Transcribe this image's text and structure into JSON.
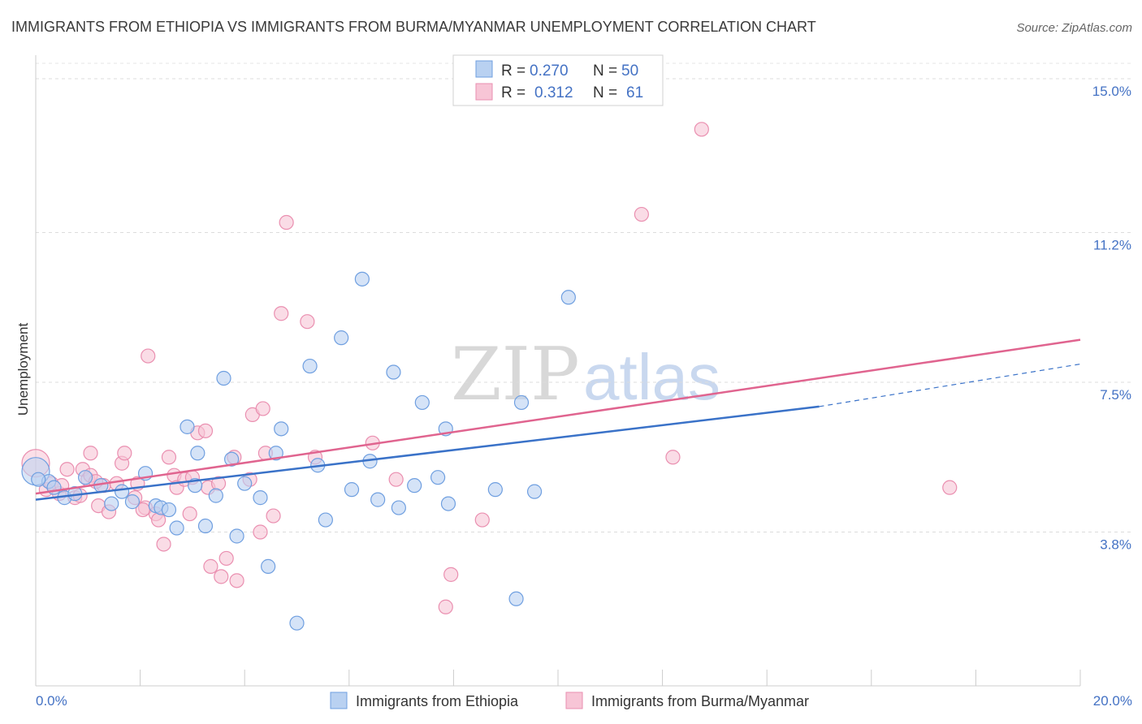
{
  "chart_data": {
    "type": "scatter",
    "title": "IMMIGRANTS FROM ETHIOPIA VS IMMIGRANTS FROM BURMA/MYANMAR UNEMPLOYMENT CORRELATION CHART",
    "source": "Source: ZipAtlas.com",
    "xlabel": "",
    "ylabel": "Unemployment",
    "xlim": [
      0,
      20
    ],
    "ylim": [
      0,
      15.0
    ],
    "x_tick_labels": [
      "0.0%",
      "20.0%"
    ],
    "y_ticks": [
      3.8,
      7.5,
      11.2,
      15.0
    ],
    "y_tick_labels": [
      "3.8%",
      "7.5%",
      "11.2%",
      "15.0%"
    ],
    "watermark": {
      "zip": "ZIP",
      "atlas": "atlas"
    },
    "legend": {
      "r_label": "R =",
      "n_label": "N =",
      "entries": [
        {
          "r": "0.270",
          "n": "50"
        },
        {
          "r": "0.312",
          "n": "61"
        }
      ]
    },
    "series": [
      {
        "name": "Immigrants from Ethiopia",
        "color": "#6f9fe0",
        "fill": "#b9d1f1",
        "line_color": "#3a72c8",
        "trend": {
          "x0": 0,
          "y0": 4.6,
          "x1": 15.0,
          "y1": 6.9,
          "dash_x1": 20,
          "dash_y1": 7.95
        },
        "points": [
          [
            0.0,
            5.3
          ],
          [
            0.25,
            5.05
          ],
          [
            0.35,
            4.9
          ],
          [
            0.55,
            4.65
          ],
          [
            0.75,
            4.75
          ],
          [
            0.95,
            5.15
          ],
          [
            1.25,
            4.95
          ],
          [
            1.45,
            4.5
          ],
          [
            1.65,
            4.8
          ],
          [
            1.85,
            4.55
          ],
          [
            2.1,
            5.25
          ],
          [
            2.3,
            4.45
          ],
          [
            2.4,
            4.4
          ],
          [
            2.55,
            4.35
          ],
          [
            2.7,
            3.9
          ],
          [
            2.9,
            6.4
          ],
          [
            3.05,
            4.95
          ],
          [
            3.1,
            5.75
          ],
          [
            3.25,
            3.95
          ],
          [
            3.45,
            4.7
          ],
          [
            3.6,
            7.6
          ],
          [
            3.75,
            5.6
          ],
          [
            3.85,
            3.7
          ],
          [
            4.0,
            5.0
          ],
          [
            4.3,
            4.65
          ],
          [
            4.45,
            2.95
          ],
          [
            4.6,
            5.75
          ],
          [
            4.7,
            6.35
          ],
          [
            5.0,
            1.55
          ],
          [
            5.25,
            7.9
          ],
          [
            5.4,
            5.45
          ],
          [
            5.55,
            4.1
          ],
          [
            5.85,
            8.6
          ],
          [
            6.05,
            4.85
          ],
          [
            6.25,
            10.05
          ],
          [
            6.4,
            5.55
          ],
          [
            6.55,
            4.6
          ],
          [
            6.85,
            7.75
          ],
          [
            6.95,
            4.4
          ],
          [
            7.25,
            4.95
          ],
          [
            7.4,
            7.0
          ],
          [
            7.7,
            5.15
          ],
          [
            7.85,
            6.35
          ],
          [
            7.9,
            4.5
          ],
          [
            8.8,
            4.85
          ],
          [
            9.2,
            2.15
          ],
          [
            9.3,
            7.0
          ],
          [
            9.55,
            4.8
          ],
          [
            10.2,
            9.6
          ],
          [
            0.05,
            5.1
          ]
        ]
      },
      {
        "name": "Immigrants from Burma/Myanmar",
        "color": "#ea8fb0",
        "fill": "#f7c5d6",
        "line_color": "#e0648f",
        "trend": {
          "x0": 0,
          "y0": 4.75,
          "x1": 20,
          "y1": 8.55
        },
        "points": [
          [
            0.0,
            5.5
          ],
          [
            0.2,
            4.85
          ],
          [
            0.3,
            5.0
          ],
          [
            0.45,
            4.75
          ],
          [
            0.6,
            5.35
          ],
          [
            0.75,
            4.65
          ],
          [
            0.9,
            5.35
          ],
          [
            1.0,
            5.1
          ],
          [
            1.05,
            5.2
          ],
          [
            1.05,
            5.75
          ],
          [
            1.2,
            4.45
          ],
          [
            1.3,
            4.95
          ],
          [
            1.4,
            4.3
          ],
          [
            1.55,
            5.0
          ],
          [
            1.65,
            5.5
          ],
          [
            1.7,
            5.75
          ],
          [
            1.9,
            4.65
          ],
          [
            1.95,
            5.0
          ],
          [
            2.1,
            4.4
          ],
          [
            2.15,
            8.15
          ],
          [
            2.3,
            4.25
          ],
          [
            2.35,
            4.1
          ],
          [
            2.45,
            3.5
          ],
          [
            2.55,
            5.65
          ],
          [
            2.65,
            5.2
          ],
          [
            2.7,
            4.9
          ],
          [
            2.85,
            5.1
          ],
          [
            2.95,
            4.25
          ],
          [
            3.1,
            6.25
          ],
          [
            3.25,
            6.3
          ],
          [
            3.3,
            4.9
          ],
          [
            3.35,
            2.95
          ],
          [
            3.5,
            5.0
          ],
          [
            3.55,
            2.7
          ],
          [
            3.65,
            3.15
          ],
          [
            3.8,
            5.65
          ],
          [
            3.85,
            2.6
          ],
          [
            4.1,
            5.1
          ],
          [
            4.15,
            6.7
          ],
          [
            4.3,
            3.8
          ],
          [
            4.35,
            6.85
          ],
          [
            4.4,
            5.75
          ],
          [
            4.55,
            4.2
          ],
          [
            4.7,
            9.2
          ],
          [
            4.8,
            11.45
          ],
          [
            5.2,
            9.0
          ],
          [
            5.35,
            5.65
          ],
          [
            6.45,
            6.0
          ],
          [
            6.9,
            5.1
          ],
          [
            7.85,
            1.95
          ],
          [
            7.95,
            2.75
          ],
          [
            8.55,
            4.1
          ],
          [
            11.6,
            11.65
          ],
          [
            12.2,
            5.65
          ],
          [
            12.75,
            13.75
          ],
          [
            17.5,
            4.9
          ],
          [
            0.5,
            4.95
          ],
          [
            1.15,
            5.05
          ],
          [
            2.05,
            4.35
          ],
          [
            3.0,
            5.15
          ],
          [
            0.85,
            4.7
          ]
        ]
      }
    ]
  }
}
